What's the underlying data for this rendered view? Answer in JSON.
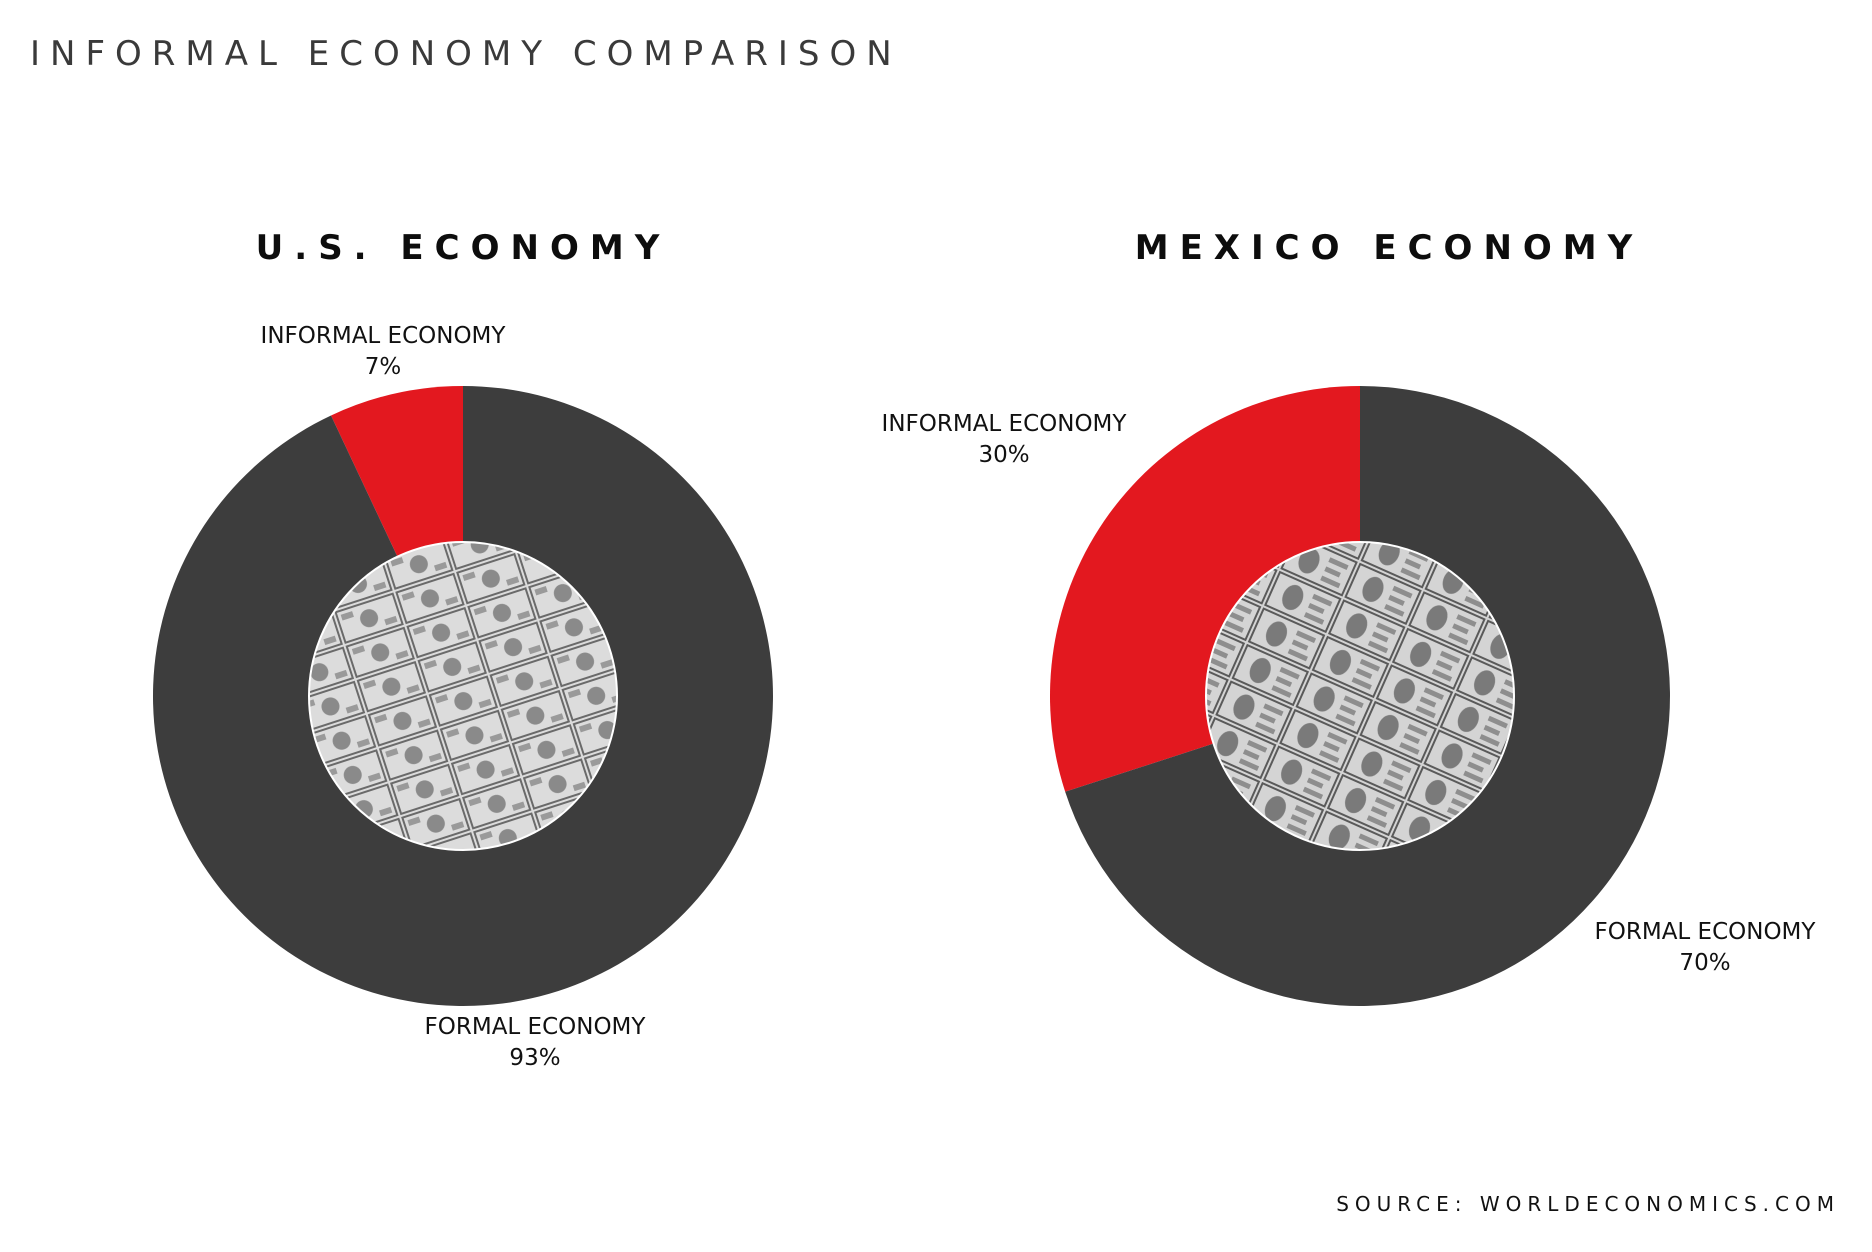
{
  "page": {
    "title": "INFORMAL ECONOMY COMPARISON",
    "source": "SOURCE: WORLDECONOMICS.COM"
  },
  "colors": {
    "formal": "#3d3d3d",
    "informal": "#e3181f"
  },
  "icons": {
    "us_center": "us-dollar-banknotes-photo",
    "mexico_center": "mexican-peso-banknotes-photo"
  },
  "chart_data": [
    {
      "type": "pie",
      "title": "U.S. ECONOMY",
      "slices": [
        {
          "label": "INFORMAL ECONOMY",
          "value": 7,
          "value_label": "7%",
          "color": "#e3181f"
        },
        {
          "label": "FORMAL ECONOMY",
          "value": 93,
          "value_label": "93%",
          "color": "#3d3d3d"
        }
      ]
    },
    {
      "type": "pie",
      "title": "MEXICO ECONOMY",
      "slices": [
        {
          "label": "INFORMAL ECONOMY",
          "value": 30,
          "value_label": "30%",
          "color": "#e3181f"
        },
        {
          "label": "FORMAL ECONOMY",
          "value": 70,
          "value_label": "70%",
          "color": "#3d3d3d"
        }
      ]
    }
  ]
}
